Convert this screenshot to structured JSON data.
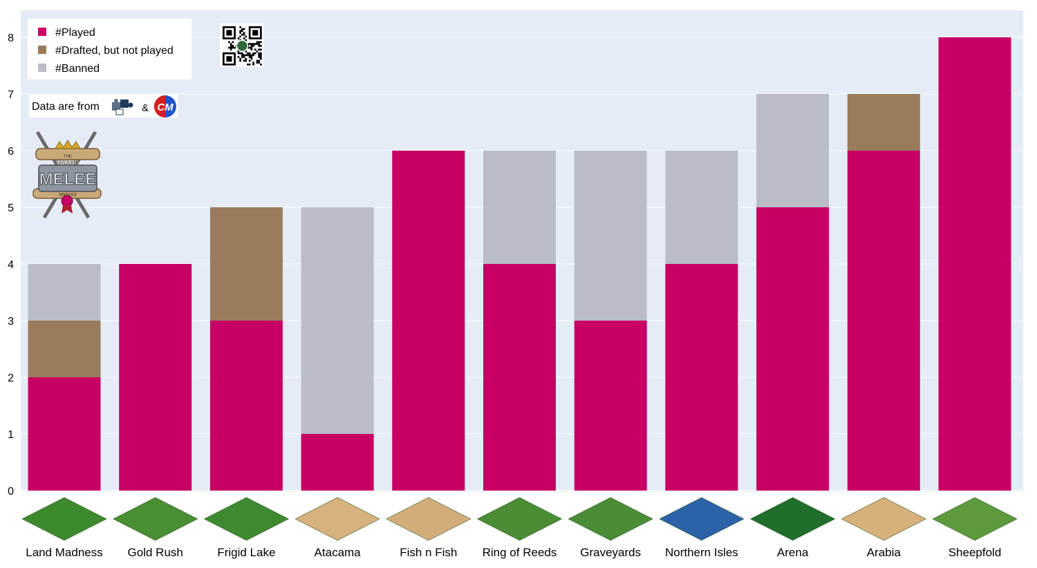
{
  "chart_data": {
    "type": "bar",
    "stacked": true,
    "categories": [
      "Land Madness",
      "Gold Rush",
      "Frigid Lake",
      "Atacama",
      "Fish n Fish",
      "Ring of Reeds",
      "Graveyards",
      "Northern Isles",
      "Arena",
      "Arabia",
      "Sheepfold"
    ],
    "series": [
      {
        "name": "#Played",
        "color": "#c80064",
        "values": [
          2,
          4,
          3,
          1,
          6,
          4,
          3,
          4,
          5,
          6,
          8
        ]
      },
      {
        "name": "#Drafted, but not played",
        "color": "#9a7b5b",
        "values": [
          1,
          0,
          2,
          0,
          0,
          0,
          0,
          0,
          0,
          1,
          0
        ]
      },
      {
        "name": "#Banned",
        "color": "#babdc6",
        "values": [
          1,
          0,
          0,
          4,
          0,
          2,
          3,
          2,
          2,
          0,
          0
        ]
      }
    ],
    "ylim": [
      0,
      8.4
    ],
    "yticks": [
      "0",
      "1",
      "2",
      "3",
      "4",
      "5",
      "6",
      "7",
      "8"
    ],
    "grid": true,
    "legend_position": "top-left",
    "plot_background": "#e5ecf6",
    "map_icon_colors": {
      "Land Madness": "#3d8a2e",
      "Gold Rush": "#4a8f33",
      "Frigid Lake": "#3f8a31",
      "Atacama": "#d8b27e",
      "Fish n Fish": "#d2ad7a",
      "Ring of Reeds": "#4b8d35",
      "Graveyards": "#4b8c36",
      "Northern Isles": "#2c63a8",
      "Arena": "#1f6e2b",
      "Arabia": "#d7b07b",
      "Sheepfold": "#5d9a3e"
    }
  },
  "attribution": {
    "text": "Data are from",
    "separator": "&",
    "source_badge": "CM"
  },
  "logo": {
    "line1": "THE",
    "line2": "GRAND",
    "line3": "MELEE",
    "line4": "MMXXII"
  }
}
